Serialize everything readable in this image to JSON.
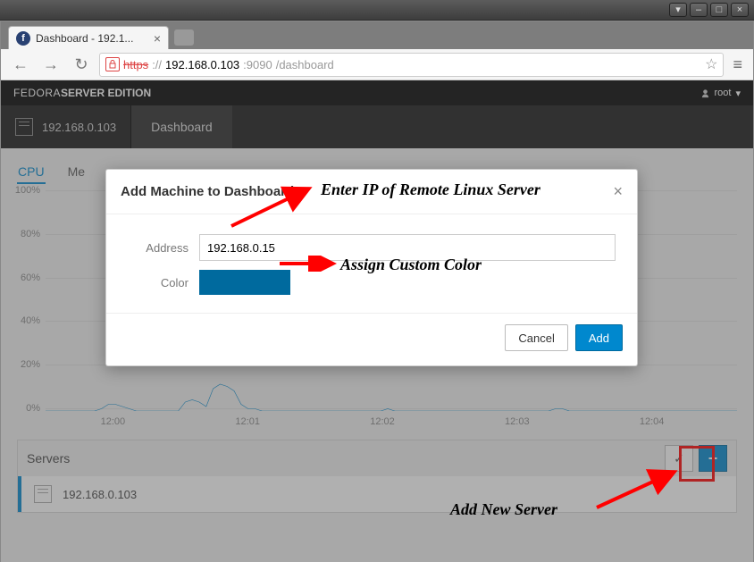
{
  "window": {
    "title_controls": {
      "down": "▾",
      "min": "–",
      "max": "□",
      "close": "×"
    }
  },
  "browser": {
    "tab_title": "Dashboard - 192.1...",
    "tab_favicon_letter": "f",
    "url_protocol": "https",
    "url_host": "192.168.0.103",
    "url_port": ":9090",
    "url_path": "/dashboard",
    "back": "←",
    "forward": "→",
    "reload": "↻",
    "star": "☆",
    "menu": "≡"
  },
  "page": {
    "brand_thin": "FEDORA ",
    "brand_bold": "SERVER EDITION",
    "user_label": "root",
    "user_caret": "▾",
    "nav_host": "192.168.0.103",
    "nav_tab": "Dashboard",
    "subtabs": {
      "cpu": "CPU",
      "memory": "Me"
    },
    "servers_header": "Servers",
    "server_row_host": "192.168.0.103",
    "check_mark": "✓",
    "plus": "+"
  },
  "chart": {
    "type": "line",
    "accent_color": "#0088ce",
    "accent_color_dark": "#006a9e",
    "grid_color": "#e0e0e0",
    "background_color": "#ffffff",
    "axis_text_color": "#888888",
    "ylim": [
      0,
      100
    ],
    "ytick_step": 20,
    "ylabels": [
      "100%",
      "80%",
      "60%",
      "40%",
      "20%",
      "0%"
    ],
    "xlabels": [
      "12:00",
      "12:01",
      "12:02",
      "12:03",
      "12:04"
    ],
    "values_pct": [
      0,
      0,
      0,
      0,
      0,
      0,
      0,
      0,
      1,
      3,
      3,
      2,
      1,
      0,
      0,
      0,
      0,
      0,
      0,
      0,
      4,
      5,
      4,
      2,
      10,
      12,
      11,
      9,
      3,
      1,
      1,
      0,
      0,
      0,
      0,
      0,
      0,
      0,
      0,
      0,
      0,
      0,
      0,
      0,
      0,
      0,
      0,
      0,
      0,
      1,
      0,
      0,
      0,
      0,
      0,
      0,
      0,
      0,
      0,
      0,
      0,
      0,
      0,
      0,
      0,
      0,
      0,
      0,
      0,
      0,
      0,
      0,
      0,
      1,
      1,
      0,
      0,
      0,
      0,
      0,
      0,
      0,
      0,
      0,
      0,
      0,
      0,
      0,
      0,
      0,
      0,
      0,
      0,
      0,
      0,
      0,
      0,
      0,
      0,
      0
    ]
  },
  "modal": {
    "title": "Add Machine to Dashboard",
    "address_label": "Address",
    "address_value": "192.168.0.15",
    "color_label": "Color",
    "swatch_color": "#006a9e",
    "cancel": "Cancel",
    "add": "Add"
  },
  "annotations": {
    "a1": "Enter IP of Remote Linux Server",
    "a2": "Assign Custom Color",
    "a3": "Add New Server",
    "arrow_color": "#ff0000"
  }
}
